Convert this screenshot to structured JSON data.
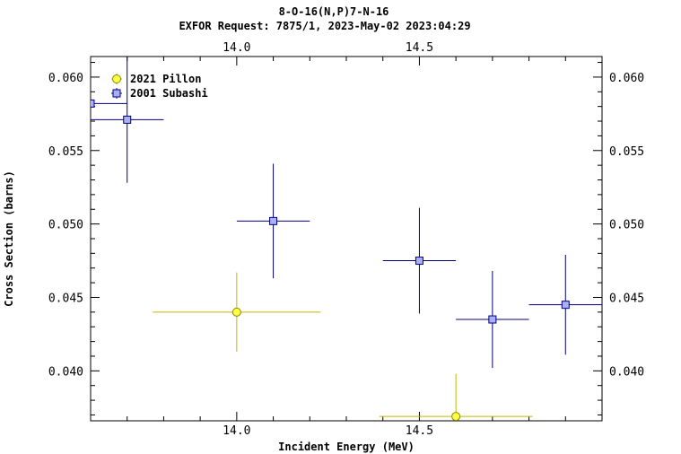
{
  "chart_data": {
    "type": "scatter",
    "title": "8-O-16(N,P)7-N-16",
    "subtitle": "EXFOR Request: 7875/1, 2023-May-02 2023:04:29",
    "xlabel": "Incident Energy (MeV)",
    "ylabel": "Cross Section (barns)",
    "xlim": [
      13.6,
      15.0
    ],
    "ylim": [
      0.0366,
      0.0614
    ],
    "x_ticks": [
      14.0,
      14.5
    ],
    "x_tick_labels": [
      "14.0",
      "14.5"
    ],
    "top_tick_labels": [
      "14.0",
      "14.5"
    ],
    "y_ticks": [
      0.04,
      0.045,
      0.05,
      0.055,
      0.06
    ],
    "y_tick_labels": [
      "0.040",
      "0.045",
      "0.050",
      "0.055",
      "0.060"
    ],
    "right_tick_labels": [
      "0.040",
      "0.045",
      "0.050",
      "0.055",
      "0.060"
    ],
    "grid": false,
    "legend_position": "top-left",
    "series": [
      {
        "name": "2021 Pillon",
        "marker": "circle",
        "color": "#ffff44",
        "error_color": "#c8b400",
        "points": [
          {
            "x": 14.0,
            "y": 0.044,
            "xerr": 0.23,
            "yerr": 0.0027
          },
          {
            "x": 14.6,
            "y": 0.0369,
            "xerr": 0.21,
            "yerr": 0.0029
          }
        ]
      },
      {
        "name": "2001 Subashi",
        "marker": "square",
        "color": "#aab0f4",
        "error_color": "#000080",
        "points": [
          {
            "x": 13.6,
            "y": 0.0582,
            "xerr": 0.1,
            "yerr": 0.0048
          },
          {
            "x": 13.7,
            "y": 0.0571,
            "xerr": 0.1,
            "yerr": 0.0043
          },
          {
            "x": 14.1,
            "y": 0.0502,
            "xerr": 0.1,
            "yerr": 0.0039
          },
          {
            "x": 14.5,
            "y": 0.0475,
            "xerr": 0.1,
            "yerr": 0.0036
          },
          {
            "x": 14.7,
            "y": 0.0435,
            "xerr": 0.1,
            "yerr": 0.0033
          },
          {
            "x": 14.9,
            "y": 0.0445,
            "xerr": 0.1,
            "yerr": 0.0034
          }
        ]
      }
    ]
  }
}
